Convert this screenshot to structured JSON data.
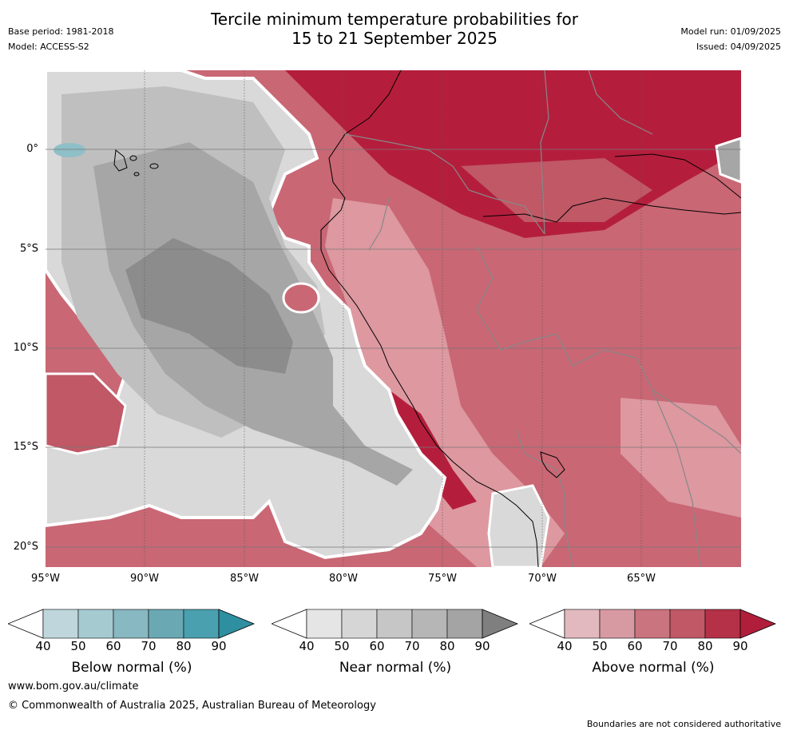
{
  "header": {
    "title_line1": "Tercile minimum temperature probabilities for",
    "title_line2": "15 to 21 September 2025",
    "base_period": "Base period: 1981-2018",
    "model": "Model: ACCESS-S2",
    "model_run": "Model run: 01/09/2025",
    "issued": "Issued: 04/09/2025"
  },
  "map": {
    "lat_labels": [
      "0°",
      "5°S",
      "10°S",
      "15°S",
      "20°S"
    ],
    "lon_labels": [
      "95°W",
      "90°W",
      "85°W",
      "80°W",
      "75°W",
      "70°W",
      "65°W"
    ],
    "colors": {
      "gray_light": "#d9d9d9",
      "gray_mid": "#bfbfbf",
      "gray_dark": "#a6a6a6",
      "gray_darkest": "#8c8c8c",
      "red_light": "#dd98a0",
      "red_mid": "#c96774",
      "red_dark": "#b41e3c",
      "blue": "#8fbfc7"
    }
  },
  "legend": {
    "below": {
      "label": "Below normal (%)",
      "ticks": [
        "40",
        "50",
        "60",
        "70",
        "80",
        "90"
      ],
      "colors": [
        "#ffffff",
        "#bfd7dc",
        "#a5cad0",
        "#88b8c1",
        "#6aa9b4",
        "#4aa0ae",
        "#2e8fa0"
      ]
    },
    "near": {
      "label": "Near normal (%)",
      "ticks": [
        "40",
        "50",
        "60",
        "70",
        "80",
        "90"
      ],
      "colors": [
        "#ffffff",
        "#e5e5e5",
        "#d6d6d6",
        "#c6c6c6",
        "#b6b6b6",
        "#a4a4a4",
        "#7f7f7f"
      ]
    },
    "above": {
      "label": "Above normal (%)",
      "ticks": [
        "40",
        "50",
        "60",
        "70",
        "80",
        "90"
      ],
      "colors": [
        "#ffffff",
        "#e1b9bf",
        "#d79aa3",
        "#ca7480",
        "#c05866",
        "#b53147",
        "#b01e3c"
      ]
    }
  },
  "footer": {
    "website": "www.bom.gov.au/climate",
    "copyright": "© Commonwealth of Australia 2025, Australian Bureau of Meteorology",
    "disclaimer": "Boundaries are not considered authoritative"
  }
}
